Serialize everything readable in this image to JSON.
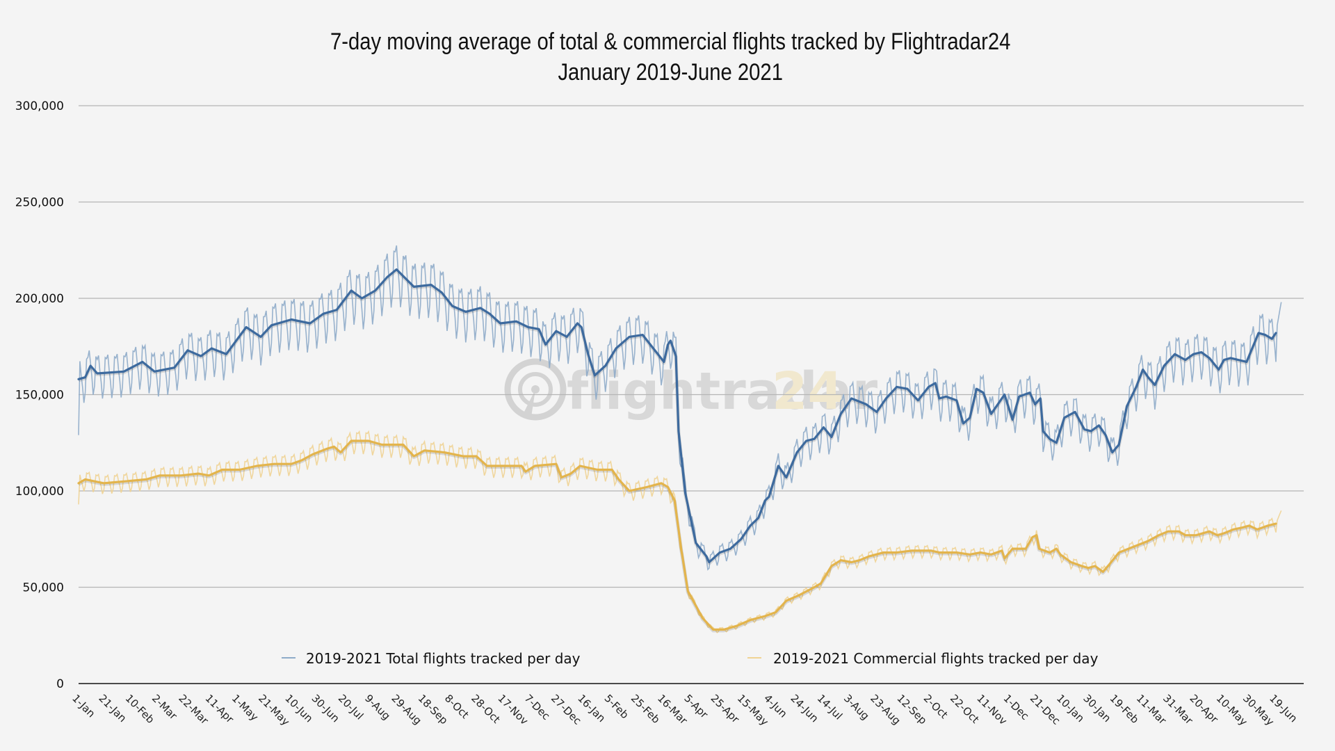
{
  "chart_data": {
    "type": "line",
    "title": "7-day moving average of total & commercial flights tracked by Flightradar24",
    "subtitle": "January 2019-June 2021",
    "xlabel": "",
    "ylabel": "",
    "ylim": [
      0,
      300000
    ],
    "yticks": [
      0,
      50000,
      100000,
      150000,
      200000,
      250000,
      300000
    ],
    "ytick_labels": [
      "0",
      "50,000",
      "100,000",
      "150,000",
      "200,000",
      "250,000",
      "300,000"
    ],
    "grid": true,
    "x_unit": "days since 1-Jan-2019",
    "x_range": [
      0,
      904
    ],
    "xtick_step_days": 20,
    "xtick_labels": [
      "1-Jan",
      "21-Jan",
      "10-Feb",
      "2-Mar",
      "22-Mar",
      "11-Apr",
      "1-May",
      "21-May",
      "10-Jun",
      "30-Jun",
      "20-Jul",
      "9-Aug",
      "29-Aug",
      "18-Sep",
      "8-Oct",
      "28-Oct",
      "17-Nov",
      "7-Dec",
      "27-Dec",
      "16-Jan",
      "5-Feb",
      "25-Feb",
      "16-Mar",
      "5-Apr",
      "25-Apr",
      "15-May",
      "4-Jun",
      "24-Jun",
      "14-Jul",
      "3-Aug",
      "23-Aug",
      "12-Sep",
      "2-Oct",
      "22-Oct",
      "11-Nov",
      "1-Dec",
      "21-Dec",
      "10-Jan",
      "30-Jan",
      "19-Feb",
      "11-Mar",
      "31-Mar",
      "20-Apr",
      "10-May",
      "30-May",
      "19-Jun"
    ],
    "legend_position": "bottom",
    "watermark": {
      "text_main": "flightradar",
      "text_accent": "24"
    },
    "series": [
      {
        "name": "2019-2021 Total flights tracked per day",
        "color": "#3d6a9e",
        "raw_color": "#8eabc9",
        "weekly_amplitude": 14000,
        "moving_average": [
          [
            0,
            158000
          ],
          [
            5,
            159000
          ],
          [
            9,
            165000
          ],
          [
            14,
            161000
          ],
          [
            34,
            162000
          ],
          [
            48,
            167000
          ],
          [
            57,
            162000
          ],
          [
            72,
            164000
          ],
          [
            82,
            173000
          ],
          [
            92,
            170000
          ],
          [
            100,
            174000
          ],
          [
            111,
            171000
          ],
          [
            126,
            185000
          ],
          [
            137,
            180000
          ],
          [
            145,
            186000
          ],
          [
            160,
            189000
          ],
          [
            174,
            187000
          ],
          [
            184,
            192000
          ],
          [
            194,
            194000
          ],
          [
            205,
            204000
          ],
          [
            213,
            200000
          ],
          [
            223,
            204000
          ],
          [
            232,
            211000
          ],
          [
            239,
            215000
          ],
          [
            252,
            206000
          ],
          [
            265,
            207000
          ],
          [
            273,
            203000
          ],
          [
            281,
            196000
          ],
          [
            291,
            193000
          ],
          [
            302,
            195000
          ],
          [
            309,
            192000
          ],
          [
            317,
            187000
          ],
          [
            329,
            188000
          ],
          [
            338,
            185000
          ],
          [
            346,
            184000
          ],
          [
            351,
            176000
          ],
          [
            359,
            183000
          ],
          [
            367,
            180000
          ],
          [
            375,
            187000
          ],
          [
            378,
            185000
          ],
          [
            383,
            171000
          ],
          [
            388,
            160000
          ],
          [
            396,
            165000
          ],
          [
            404,
            174000
          ],
          [
            414,
            180000
          ],
          [
            424,
            181000
          ],
          [
            432,
            174000
          ],
          [
            440,
            167000
          ],
          [
            443,
            176000
          ],
          [
            445,
            178000
          ],
          [
            449,
            170000
          ],
          [
            451,
            131000
          ],
          [
            456,
            99000
          ],
          [
            464,
            73000
          ],
          [
            472,
            66000
          ],
          [
            474,
            63000
          ],
          [
            482,
            68000
          ],
          [
            490,
            70000
          ],
          [
            498,
            75000
          ],
          [
            505,
            82000
          ],
          [
            511,
            86000
          ],
          [
            516,
            95000
          ],
          [
            519,
            97000
          ],
          [
            526,
            113000
          ],
          [
            532,
            107000
          ],
          [
            540,
            120000
          ],
          [
            547,
            126000
          ],
          [
            553,
            127000
          ],
          [
            560,
            133000
          ],
          [
            566,
            128000
          ],
          [
            573,
            140000
          ],
          [
            581,
            148000
          ],
          [
            592,
            145000
          ],
          [
            600,
            141000
          ],
          [
            607,
            148000
          ],
          [
            615,
            154000
          ],
          [
            623,
            153000
          ],
          [
            631,
            147000
          ],
          [
            639,
            154000
          ],
          [
            644,
            156000
          ],
          [
            647,
            148000
          ],
          [
            652,
            149000
          ],
          [
            660,
            147000
          ],
          [
            665,
            135000
          ],
          [
            670,
            138000
          ],
          [
            675,
            153000
          ],
          [
            680,
            151000
          ],
          [
            686,
            140000
          ],
          [
            691,
            145000
          ],
          [
            696,
            150000
          ],
          [
            702,
            137000
          ],
          [
            707,
            149000
          ],
          [
            715,
            151000
          ],
          [
            719,
            145000
          ],
          [
            723,
            148000
          ],
          [
            725,
            131000
          ],
          [
            730,
            127000
          ],
          [
            735,
            125000
          ],
          [
            741,
            138000
          ],
          [
            749,
            141000
          ],
          [
            756,
            132000
          ],
          [
            761,
            131000
          ],
          [
            767,
            134000
          ],
          [
            772,
            129000
          ],
          [
            777,
            120000
          ],
          [
            782,
            124000
          ],
          [
            788,
            144000
          ],
          [
            795,
            154000
          ],
          [
            800,
            163000
          ],
          [
            804,
            159000
          ],
          [
            809,
            155000
          ],
          [
            816,
            165000
          ],
          [
            824,
            171000
          ],
          [
            832,
            168000
          ],
          [
            838,
            171000
          ],
          [
            844,
            172000
          ],
          [
            850,
            169000
          ],
          [
            857,
            163000
          ],
          [
            861,
            168000
          ],
          [
            866,
            169000
          ],
          [
            878,
            167000
          ],
          [
            887,
            182000
          ],
          [
            892,
            181000
          ],
          [
            897,
            179000
          ],
          [
            900,
            182000
          ]
        ]
      },
      {
        "name": "2019-2021 Commercial flights tracked per day",
        "color": "#e3b44c",
        "raw_color": "#f0d393",
        "weekly_amplitude": 6000,
        "moving_average": [
          [
            0,
            104000
          ],
          [
            5,
            106000
          ],
          [
            12,
            105000
          ],
          [
            19,
            104000
          ],
          [
            35,
            105000
          ],
          [
            51,
            106000
          ],
          [
            61,
            108000
          ],
          [
            77,
            108000
          ],
          [
            90,
            109000
          ],
          [
            98,
            108000
          ],
          [
            108,
            111000
          ],
          [
            121,
            111000
          ],
          [
            134,
            113000
          ],
          [
            147,
            114000
          ],
          [
            160,
            114000
          ],
          [
            168,
            116000
          ],
          [
            176,
            119000
          ],
          [
            187,
            122000
          ],
          [
            192,
            123000
          ],
          [
            197,
            120000
          ],
          [
            205,
            126000
          ],
          [
            218,
            126000
          ],
          [
            228,
            124000
          ],
          [
            244,
            124000
          ],
          [
            252,
            118000
          ],
          [
            260,
            121000
          ],
          [
            275,
            120000
          ],
          [
            289,
            118000
          ],
          [
            299,
            118000
          ],
          [
            307,
            113000
          ],
          [
            320,
            113000
          ],
          [
            333,
            113000
          ],
          [
            336,
            110000
          ],
          [
            343,
            113000
          ],
          [
            359,
            114000
          ],
          [
            363,
            107000
          ],
          [
            370,
            109000
          ],
          [
            377,
            113000
          ],
          [
            390,
            111000
          ],
          [
            401,
            111000
          ],
          [
            406,
            106000
          ],
          [
            414,
            100000
          ],
          [
            427,
            102000
          ],
          [
            438,
            104000
          ],
          [
            443,
            102000
          ],
          [
            448,
            95000
          ],
          [
            453,
            70000
          ],
          [
            458,
            48000
          ],
          [
            469,
            34000
          ],
          [
            477,
            28000
          ],
          [
            485,
            28000
          ],
          [
            495,
            30000
          ],
          [
            505,
            33000
          ],
          [
            516,
            35000
          ],
          [
            524,
            37000
          ],
          [
            532,
            43000
          ],
          [
            542,
            46000
          ],
          [
            553,
            50000
          ],
          [
            558,
            52000
          ],
          [
            566,
            61000
          ],
          [
            573,
            64000
          ],
          [
            581,
            63000
          ],
          [
            587,
            64000
          ],
          [
            594,
            66000
          ],
          [
            605,
            68000
          ],
          [
            615,
            68000
          ],
          [
            626,
            69000
          ],
          [
            636,
            69000
          ],
          [
            641,
            69000
          ],
          [
            647,
            68000
          ],
          [
            660,
            68000
          ],
          [
            670,
            67000
          ],
          [
            678,
            68000
          ],
          [
            686,
            67000
          ],
          [
            694,
            69000
          ],
          [
            696,
            65000
          ],
          [
            702,
            70000
          ],
          [
            712,
            70000
          ],
          [
            717,
            76000
          ],
          [
            720,
            77000
          ],
          [
            722,
            70000
          ],
          [
            730,
            68000
          ],
          [
            735,
            70000
          ],
          [
            738,
            67000
          ],
          [
            746,
            63000
          ],
          [
            754,
            61000
          ],
          [
            759,
            60000
          ],
          [
            764,
            61000
          ],
          [
            770,
            58000
          ],
          [
            775,
            62000
          ],
          [
            782,
            68000
          ],
          [
            793,
            71000
          ],
          [
            804,
            74000
          ],
          [
            812,
            77000
          ],
          [
            819,
            79000
          ],
          [
            827,
            79000
          ],
          [
            832,
            77000
          ],
          [
            840,
            77000
          ],
          [
            850,
            79000
          ],
          [
            856,
            77000
          ],
          [
            861,
            78000
          ],
          [
            868,
            80000
          ],
          [
            875,
            81000
          ],
          [
            880,
            82000
          ],
          [
            886,
            80000
          ],
          [
            894,
            82000
          ],
          [
            900,
            83000
          ]
        ]
      }
    ]
  }
}
